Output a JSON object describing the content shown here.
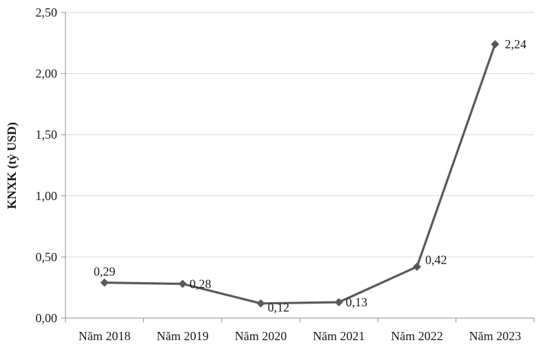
{
  "chart_data": {
    "type": "line",
    "categories": [
      "Năm 2018",
      "Năm 2019",
      "Năm 2020",
      "Năm 2021",
      "Năm 2022",
      "Năm 2023"
    ],
    "series": [
      {
        "values": [
          0.29,
          0.28,
          0.12,
          0.13,
          0.42,
          2.24
        ],
        "data_labels": [
          "0,29",
          "0,28",
          "0,12",
          "0,13",
          "0,42",
          "2,24"
        ],
        "color": "#595959",
        "marker": "diamond"
      }
    ],
    "title": "",
    "xlabel": "",
    "ylabel": "KNXK (tỷ USD)",
    "ylim": [
      0,
      2.5
    ],
    "yticks": [
      0,
      0.5,
      1.0,
      1.5,
      2.0,
      2.5
    ],
    "ytick_labels": [
      "0,00",
      "0,50",
      "1,00",
      "1,50",
      "2,00",
      "2,50"
    ],
    "grid": "horizontal",
    "legend": "none"
  }
}
